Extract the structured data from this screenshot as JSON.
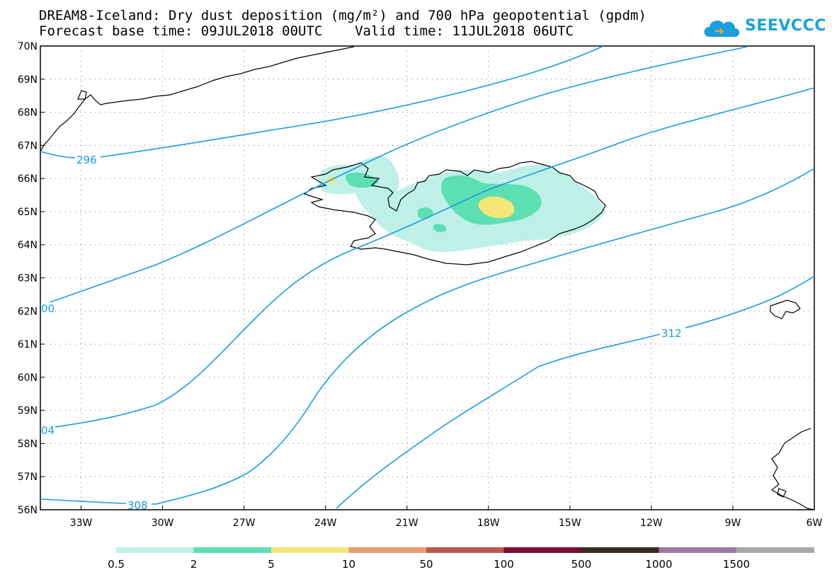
{
  "title": {
    "line1": "DREAM8-Iceland: Dry dust deposition (mg/m²) and 700 hPa geopotential (gpdm)",
    "line2": "Forecast base time: 09JUL2018 00UTC    Valid time: 11JUL2018 06UTC"
  },
  "logo": {
    "text": "SEEVCCC",
    "icon": "cloud-icon",
    "color": "#1aa0e0"
  },
  "map": {
    "lat_labels": [
      "70N",
      "69N",
      "68N",
      "67N",
      "66N",
      "65N",
      "64N",
      "63N",
      "62N",
      "61N",
      "60N",
      "59N",
      "58N",
      "57N",
      "56N"
    ],
    "lon_labels": [
      "33W",
      "30W",
      "27W",
      "24W",
      "21W",
      "18W",
      "15W",
      "12W",
      "9W",
      "6W"
    ],
    "lat_range": [
      56,
      70
    ],
    "lon_range": [
      -34.5,
      -6
    ],
    "grid": "dotted",
    "contour_color": "#1a9be0",
    "contour_labels": [
      "296",
      "00",
      "04",
      "308",
      "312"
    ]
  },
  "colorbar": {
    "labels": [
      "0.5",
      "2",
      "5",
      "10",
      "50",
      "100",
      "500",
      "1000",
      "1500"
    ],
    "colors": [
      "#bff0e8",
      "#5ddfb4",
      "#f5e67a",
      "#ef9a74",
      "#b9584e",
      "#7c0d2f",
      "#3b2b1e",
      "#9c7aa3",
      "#a8a8a8"
    ]
  }
}
